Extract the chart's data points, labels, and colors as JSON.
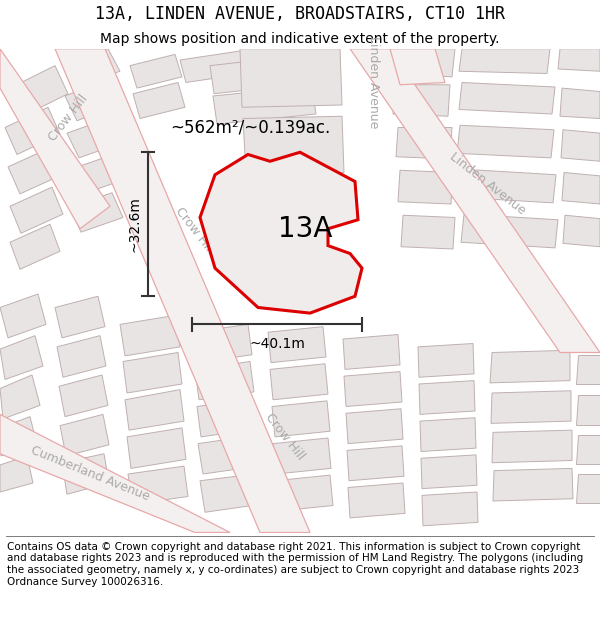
{
  "title": "13A, LINDEN AVENUE, BROADSTAIRS, CT10 1HR",
  "subtitle": "Map shows position and indicative extent of the property.",
  "footer": "Contains OS data © Crown copyright and database right 2021. This information is subject to Crown copyright and database rights 2023 and is reproduced with the permission of HM Land Registry. The polygons (including the associated geometry, namely x, y co-ordinates) are subject to Crown copyright and database rights 2023 Ordnance Survey 100026316.",
  "area_label": "~562m²/~0.139ac.",
  "property_label": "13A",
  "width_label": "~40.1m",
  "height_label": "~32.6m",
  "map_bg": "#f8f5f5",
  "block_fill": "#e8e4e4",
  "block_edge": "#c0b0b0",
  "road_line_color": "#e8a8a8",
  "property_fill": "#f0ecec",
  "property_edge": "#dd0000",
  "property_edge_width": 2.2,
  "label_color": "#aaaaaa",
  "dim_color": "#333333",
  "title_fontsize": 12,
  "subtitle_fontsize": 10,
  "footer_fontsize": 7.5,
  "area_fontsize": 12,
  "property_label_fontsize": 20,
  "dim_label_fontsize": 10,
  "road_label_fontsize": 9
}
